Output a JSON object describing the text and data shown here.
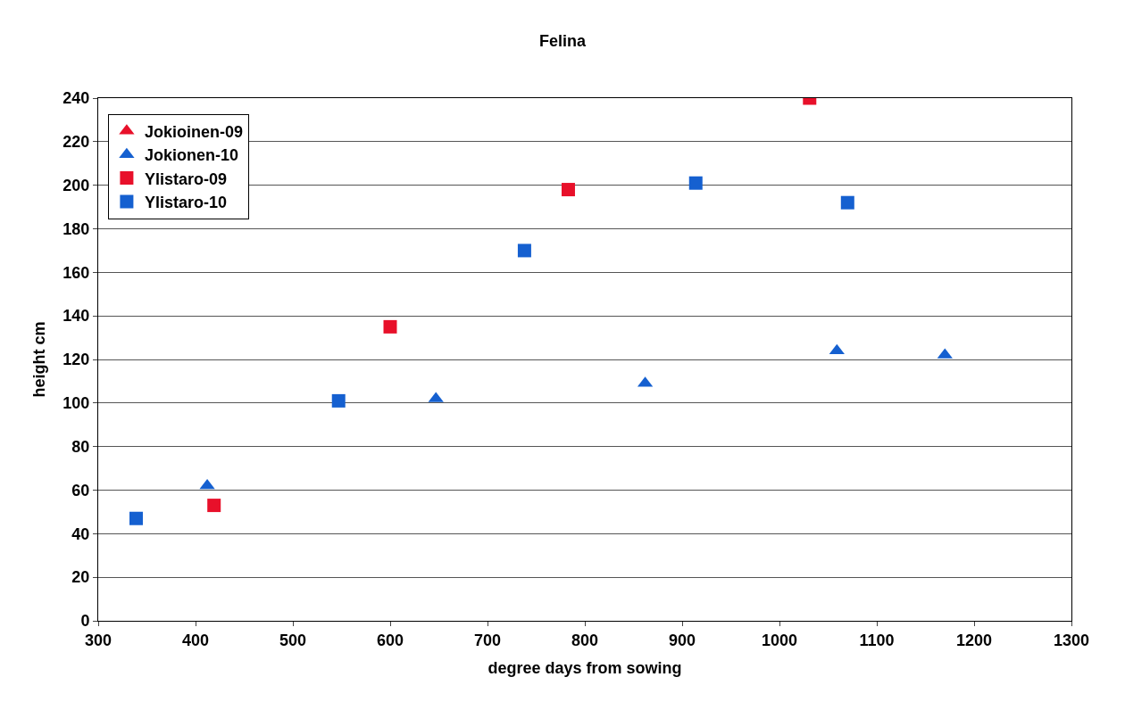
{
  "chart_data": {
    "type": "scatter",
    "title": "Felina",
    "xlabel": "degree days from sowing",
    "ylabel": "height cm",
    "xlim": [
      300,
      1300
    ],
    "xticks": [
      300,
      400,
      500,
      600,
      700,
      800,
      900,
      1000,
      1100,
      1200,
      1300
    ],
    "ylim": [
      0,
      240
    ],
    "yticks": [
      0,
      20,
      40,
      60,
      80,
      100,
      120,
      140,
      160,
      180,
      200,
      220,
      240
    ],
    "grid": "y",
    "legend": "top left",
    "series": [
      {
        "name": "Jokioinen-09",
        "color": "#e8102a",
        "marker": "triangle"
      },
      {
        "name": "Jokionen-10",
        "color": "#1560d0",
        "marker": "triangle",
        "x": [
          412,
          647,
          862,
          1059,
          1170
        ],
        "values": [
          62,
          102,
          109,
          124,
          122
        ]
      },
      {
        "name": "Ylistaro-09",
        "color": "#e8102a",
        "marker": "square",
        "x": [
          419,
          600,
          783,
          1031
        ],
        "values": [
          53,
          135,
          198,
          240
        ]
      },
      {
        "name": "Ylistaro-10",
        "color": "#1560d0",
        "marker": "square",
        "x": [
          339,
          547,
          738,
          914,
          1070
        ],
        "values": [
          47,
          101,
          170,
          201,
          192
        ]
      }
    ]
  }
}
